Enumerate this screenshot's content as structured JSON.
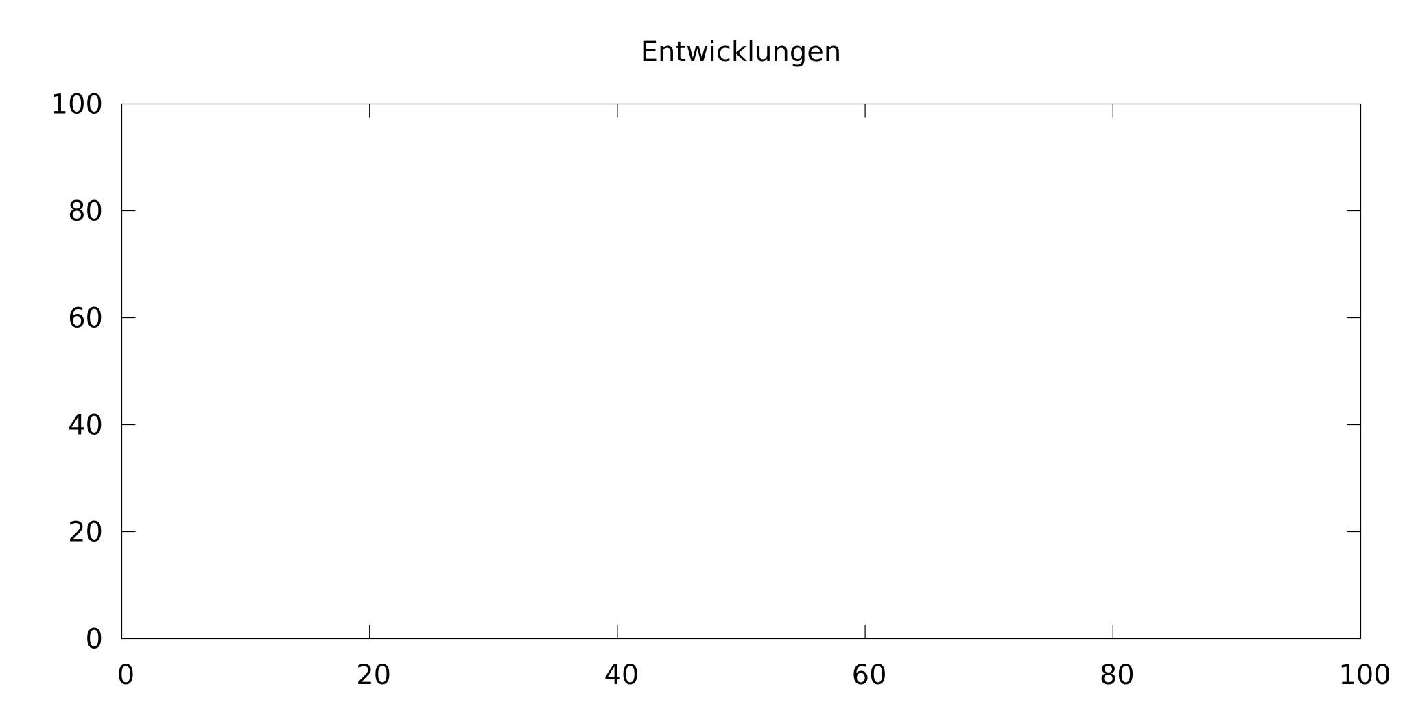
{
  "chart_data": {
    "type": "line",
    "title": "Entwicklungen",
    "xlabel": "",
    "ylabel": "",
    "xlim": [
      0,
      100
    ],
    "ylim": [
      0,
      100
    ],
    "x_ticks": [
      0,
      20,
      40,
      60,
      80,
      100
    ],
    "y_ticks": [
      0,
      20,
      40,
      60,
      80,
      100
    ],
    "x_tick_labels": [
      "0",
      "20",
      "40",
      "60",
      "80",
      "100"
    ],
    "y_tick_labels": [
      "0",
      "20",
      "40",
      "60",
      "80",
      "100"
    ],
    "grid": false,
    "legend": "none",
    "series": []
  }
}
